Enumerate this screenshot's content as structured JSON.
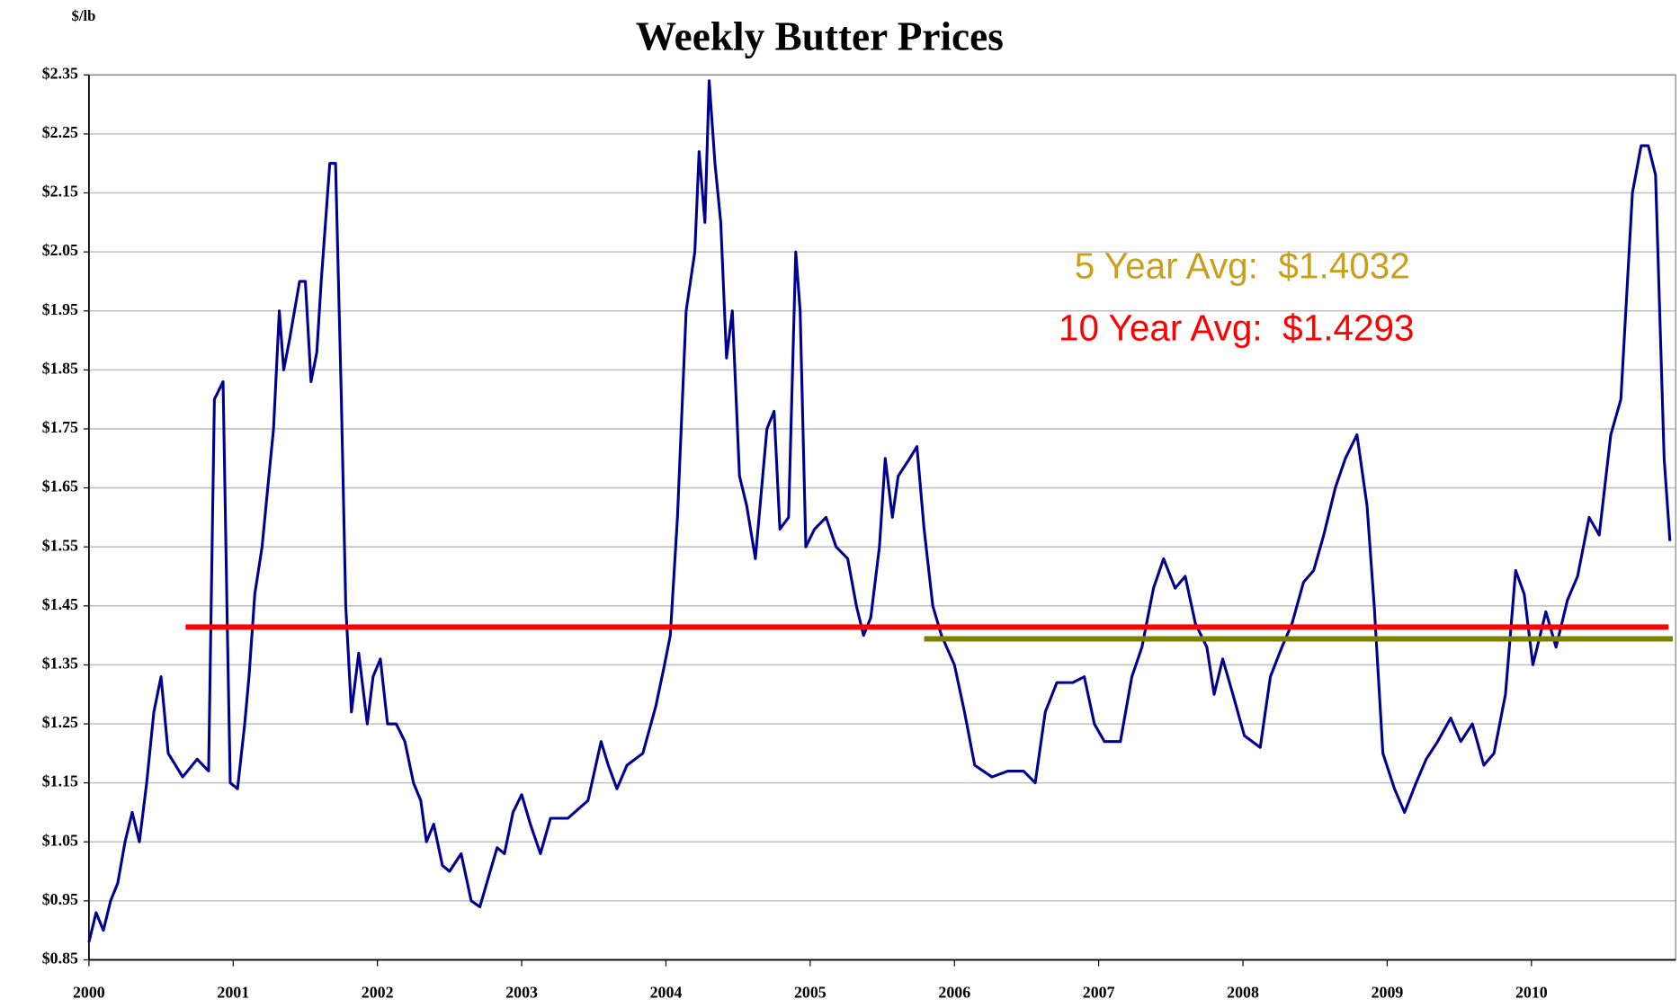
{
  "chart_data": {
    "type": "line",
    "title": "Weekly Butter Prices",
    "y_label": "$/lb",
    "color": "#000090",
    "x": [
      2000.0,
      2000.05,
      2000.1,
      2000.15,
      2000.2,
      2000.25,
      2000.3,
      2000.35,
      2000.4,
      2000.45,
      2000.5,
      2000.55,
      2000.6,
      2000.65,
      2000.75,
      2000.83,
      2000.87,
      2000.93,
      2000.96,
      2000.98,
      2001.03,
      2001.08,
      2001.11,
      2001.15,
      2001.2,
      2001.24,
      2001.28,
      2001.32,
      2001.35,
      2001.39,
      2001.46,
      2001.5,
      2001.54,
      2001.58,
      2001.61,
      2001.67,
      2001.71,
      2001.75,
      2001.78,
      2001.82,
      2001.87,
      2001.93,
      2001.97,
      2002.02,
      2002.07,
      2002.13,
      2002.19,
      2002.25,
      2002.3,
      2002.34,
      2002.39,
      2002.45,
      2002.5,
      2002.58,
      2002.65,
      2002.71,
      2002.77,
      2002.83,
      2002.88,
      2002.94,
      2003.0,
      2003.06,
      2003.13,
      2003.2,
      2003.32,
      2003.46,
      2003.55,
      2003.6,
      2003.66,
      2003.73,
      2003.84,
      2003.93,
      2003.99,
      2004.03,
      2004.08,
      2004.14,
      2004.2,
      2004.23,
      2004.27,
      2004.3,
      2004.34,
      2004.38,
      2004.42,
      2004.46,
      2004.51,
      2004.56,
      2004.62,
      2004.7,
      2004.75,
      2004.79,
      2004.85,
      2004.9,
      2004.93,
      2004.97,
      2005.03,
      2005.11,
      2005.18,
      2005.26,
      2005.32,
      2005.37,
      2005.42,
      2005.48,
      2005.52,
      2005.57,
      2005.61,
      2005.69,
      2005.74,
      2005.79,
      2005.85,
      2005.91,
      2006.0,
      2006.07,
      2006.14,
      2006.26,
      2006.37,
      2006.48,
      2006.56,
      2006.63,
      2006.71,
      2006.82,
      2006.9,
      2006.97,
      2007.04,
      2007.15,
      2007.23,
      2007.3,
      2007.38,
      2007.45,
      2007.53,
      2007.6,
      2007.67,
      2007.75,
      2007.8,
      2007.86,
      2007.93,
      2008.01,
      2008.12,
      2008.19,
      2008.27,
      2008.34,
      2008.42,
      2008.49,
      2008.56,
      2008.64,
      2008.71,
      2008.79,
      2008.86,
      2008.91,
      2008.97,
      2009.05,
      2009.12,
      2009.2,
      2009.27,
      2009.35,
      2009.44,
      2009.51,
      2009.59,
      2009.67,
      2009.74,
      2009.82,
      2009.89,
      2009.95,
      2010.01,
      2010.1,
      2010.17,
      2010.25,
      2010.32,
      2010.4,
      2010.47,
      2010.55,
      2010.62,
      2010.7,
      2010.76,
      2010.81,
      2010.86,
      2010.92,
      2010.96
    ],
    "values": [
      0.88,
      0.93,
      0.9,
      0.95,
      0.98,
      1.05,
      1.1,
      1.05,
      1.15,
      1.27,
      1.33,
      1.2,
      1.18,
      1.16,
      1.19,
      1.17,
      1.8,
      1.83,
      1.4,
      1.15,
      1.14,
      1.25,
      1.33,
      1.47,
      1.55,
      1.65,
      1.75,
      1.95,
      1.85,
      1.9,
      2.0,
      2.0,
      1.83,
      1.88,
      2.0,
      2.2,
      2.2,
      1.8,
      1.45,
      1.27,
      1.37,
      1.25,
      1.33,
      1.36,
      1.25,
      1.25,
      1.22,
      1.15,
      1.12,
      1.05,
      1.08,
      1.01,
      1.0,
      1.03,
      0.95,
      0.94,
      0.99,
      1.04,
      1.03,
      1.1,
      1.13,
      1.08,
      1.03,
      1.09,
      1.09,
      1.12,
      1.22,
      1.18,
      1.14,
      1.18,
      1.2,
      1.28,
      1.35,
      1.4,
      1.6,
      1.95,
      2.05,
      2.22,
      2.1,
      2.34,
      2.2,
      2.1,
      1.87,
      1.95,
      1.67,
      1.62,
      1.53,
      1.75,
      1.78,
      1.58,
      1.6,
      2.05,
      1.95,
      1.55,
      1.58,
      1.6,
      1.55,
      1.53,
      1.45,
      1.4,
      1.43,
      1.55,
      1.7,
      1.6,
      1.67,
      1.7,
      1.72,
      1.58,
      1.45,
      1.4,
      1.35,
      1.27,
      1.18,
      1.16,
      1.17,
      1.17,
      1.15,
      1.27,
      1.32,
      1.32,
      1.33,
      1.25,
      1.22,
      1.22,
      1.33,
      1.38,
      1.48,
      1.53,
      1.48,
      1.5,
      1.42,
      1.38,
      1.3,
      1.36,
      1.3,
      1.23,
      1.21,
      1.33,
      1.38,
      1.42,
      1.49,
      1.51,
      1.57,
      1.65,
      1.7,
      1.74,
      1.62,
      1.45,
      1.2,
      1.14,
      1.1,
      1.15,
      1.19,
      1.22,
      1.26,
      1.22,
      1.25,
      1.18,
      1.2,
      1.3,
      1.51,
      1.47,
      1.35,
      1.44,
      1.38,
      1.46,
      1.5,
      1.6,
      1.57,
      1.74,
      1.8,
      2.15,
      2.23,
      2.23,
      2.18,
      1.7,
      1.56
    ],
    "reference_lines": [
      {
        "value": 1.414,
        "x": [
          2000.67,
          2010.95
        ],
        "color": "#ff0000"
      },
      {
        "value": 1.394,
        "x": [
          2005.79,
          2010.98
        ],
        "color": "#7a8200"
      }
    ],
    "annotations": [
      {
        "text": "5 Year Avg:  $1.4032",
        "color": "#c8a020"
      },
      {
        "text": "10 Year Avg:  $1.4293",
        "color": "#ff0000"
      }
    ],
    "xlim": [
      2000,
      2011
    ],
    "ylim": [
      0.85,
      2.35
    ],
    "xticks": [
      2000,
      2001,
      2002,
      2003,
      2004,
      2005,
      2006,
      2007,
      2008,
      2009,
      2010
    ],
    "yticks": [
      {
        "value": 0.85,
        "label": "$0.85"
      },
      {
        "value": 0.95,
        "label": "$0.95"
      },
      {
        "value": 1.05,
        "label": "$1.05"
      },
      {
        "value": 1.15,
        "label": "$1.15"
      },
      {
        "value": 1.25,
        "label": "$1.25"
      },
      {
        "value": 1.35,
        "label": "$1.35"
      },
      {
        "value": 1.45,
        "label": "$1.45"
      },
      {
        "value": 1.55,
        "label": "$1.55"
      },
      {
        "value": 1.65,
        "label": "$1.65"
      },
      {
        "value": 1.75,
        "label": "$1.75"
      },
      {
        "value": 1.85,
        "label": "$1.85"
      },
      {
        "value": 1.95,
        "label": "$1.95"
      },
      {
        "value": 2.05,
        "label": "$2.05"
      },
      {
        "value": 2.15,
        "label": "$2.15"
      },
      {
        "value": 2.25,
        "label": "$2.25"
      },
      {
        "value": 2.35,
        "label": "$2.35"
      }
    ],
    "grid": true
  }
}
